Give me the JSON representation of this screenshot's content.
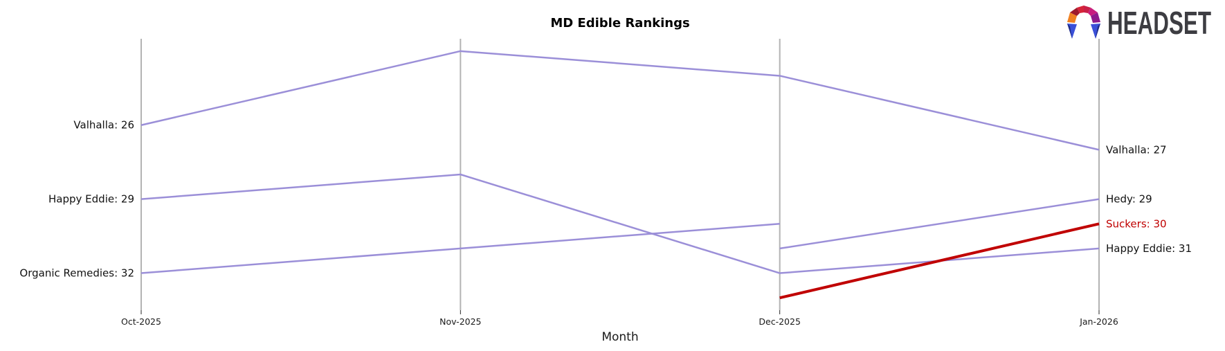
{
  "page": {
    "background": "#ffffff"
  },
  "header": {
    "logo_text": "HEADSET"
  },
  "logo_palette": {
    "orange": "#f08121",
    "dark_red": "#9e1a2c",
    "red": "#d62439",
    "crimson": "#c91f47",
    "magenta": "#c81d7f",
    "purple": "#8d1a8c",
    "blue": "#3a50d8",
    "navy": "#1f2b86",
    "text": "#3d3d42"
  },
  "chart_data": {
    "type": "line",
    "chart_style": "rank-bump",
    "title": "MD Edible Rankings",
    "xlabel": "Month",
    "categories": [
      "Oct-2025",
      "Nov-2025",
      "Dec-2025",
      "Jan-2026"
    ],
    "y_axis": {
      "inverted": true,
      "unit": "rank",
      "visible_range": [
        22.5,
        33.5
      ],
      "note": "lower rank number = higher position"
    },
    "grid": false,
    "legend": "none",
    "axis_color": "#b3b3b3",
    "tick_color": "#262626",
    "text_color": "#1a1a1a",
    "line_color_default": "#9b8fd8",
    "line_color_highlight": "#c00000",
    "series": [
      {
        "name": "Valhalla",
        "values": [
          26,
          23,
          24,
          27
        ],
        "color": "#9b8fd8",
        "line_width": 2.5,
        "highlighted": false
      },
      {
        "name": "Happy Eddie",
        "values": [
          29,
          28,
          32,
          31
        ],
        "color": "#9b8fd8",
        "line_width": 2.5,
        "highlighted": false
      },
      {
        "name": "Organic Remedies",
        "values": [
          32,
          31,
          30,
          null
        ],
        "color": "#9b8fd8",
        "line_width": 2.5,
        "highlighted": false
      },
      {
        "name": "Hedy",
        "values": [
          null,
          null,
          31,
          29
        ],
        "color": "#9b8fd8",
        "line_width": 2.5,
        "highlighted": false
      },
      {
        "name": "Suckers",
        "values": [
          null,
          null,
          33,
          30
        ],
        "color": "#c00000",
        "line_width": 4,
        "highlighted": true
      }
    ],
    "left_labels": [
      {
        "text": "Valhalla: 26",
        "rank": 26,
        "color": "#111111"
      },
      {
        "text": "Happy Eddie: 29",
        "rank": 29,
        "color": "#111111"
      },
      {
        "text": "Organic Remedies: 32",
        "rank": 32,
        "color": "#111111"
      }
    ],
    "right_labels": [
      {
        "text": "Valhalla: 27",
        "rank": 27,
        "color": "#111111"
      },
      {
        "text": "Hedy: 29",
        "rank": 29,
        "color": "#111111"
      },
      {
        "text": "Suckers: 30",
        "rank": 30,
        "color": "#c00000"
      },
      {
        "text": "Happy Eddie: 31",
        "rank": 31,
        "color": "#111111"
      }
    ]
  }
}
